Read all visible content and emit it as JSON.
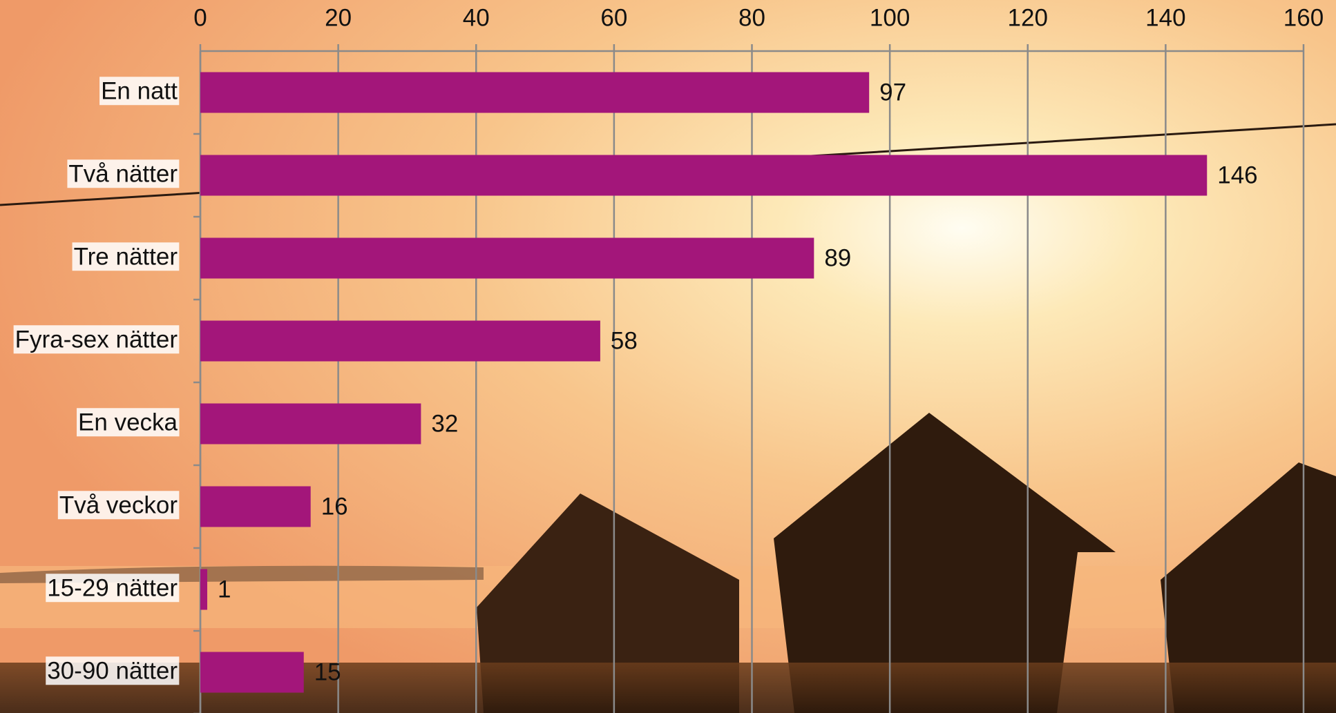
{
  "chart_data": {
    "type": "barh",
    "categories": [
      "En natt",
      "Två nätter",
      "Tre nätter",
      "Fyra-sex nätter",
      "En vecka",
      "Två veckor",
      "15-29 nätter",
      "30-90 nätter"
    ],
    "values": [
      97,
      146,
      89,
      58,
      32,
      16,
      1,
      15
    ],
    "color": "#a3167a",
    "xlim": [
      0,
      160
    ],
    "xticks": [
      0,
      20,
      40,
      60,
      80,
      100,
      120,
      140,
      160
    ],
    "grid": true
  }
}
